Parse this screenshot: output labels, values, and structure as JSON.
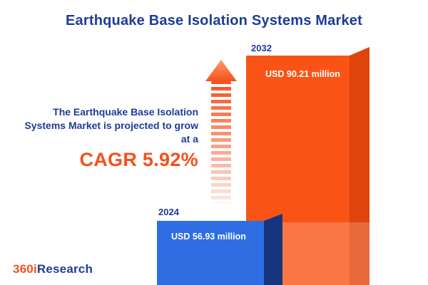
{
  "title": "Earthquake Base Isolation Systems Market",
  "intro": {
    "line1": "The Earthquake Base Isolation",
    "line2": "Systems Market is projected to grow",
    "line3": "at a",
    "cagr": "CAGR 5.92%"
  },
  "chart_data": {
    "type": "bar",
    "title": "Earthquake Base Isolation Systems Market",
    "categories": [
      "2024",
      "2032"
    ],
    "values": [
      56.93,
      90.21
    ],
    "unit": "USD million",
    "value_labels": [
      "USD 56.93 million",
      "USD 90.21 million"
    ],
    "cagr_percent": 5.92,
    "series_colors": [
      "#2f6ee2",
      "#f95416"
    ],
    "legend": "none",
    "grid": false
  },
  "logo": {
    "part1": "360i",
    "part2": "Research"
  },
  "colors": {
    "navy": "#1e3c96",
    "orange": "#f4511e",
    "bar_blue": "#2f6ee2",
    "bar_orange": "#f95416",
    "background": "#ffffff"
  }
}
